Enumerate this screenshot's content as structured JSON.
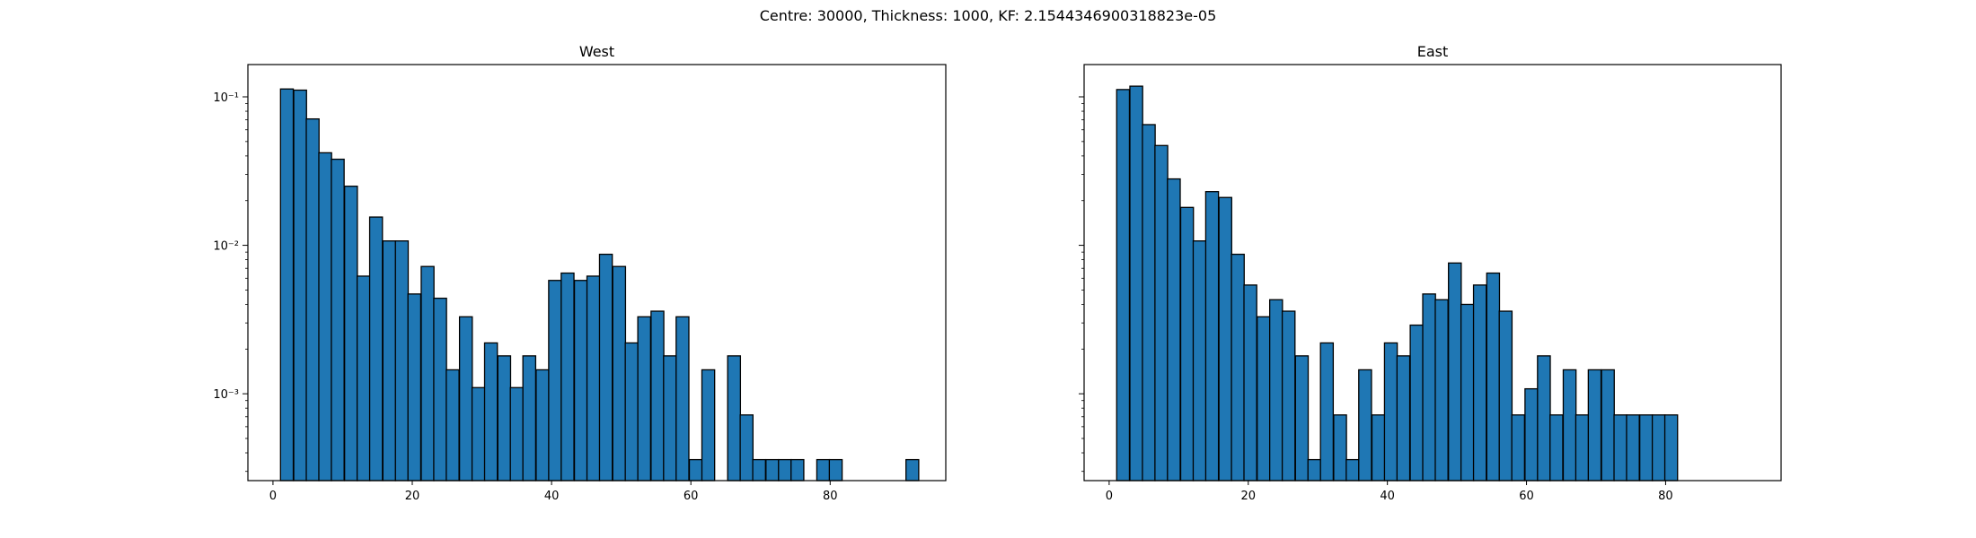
{
  "suptitle": "Centre: 30000, Thickness: 1000, KF: 2.1544346900318823e-05",
  "chart_data": [
    {
      "type": "bar",
      "title": "West",
      "xlabel": "",
      "ylabel": "",
      "yscale": "log",
      "xlim": [
        -3.6,
        96.6
      ],
      "ylim": [
        0.00026,
        0.165
      ],
      "xticks": [
        0,
        20,
        40,
        60,
        80
      ],
      "yticks": [
        0.001,
        0.01,
        0.1
      ],
      "ytick_labels": [
        "10⁻³",
        "10⁻²",
        "10⁻¹"
      ],
      "ytick_labels_visible": true,
      "bar_color": "#1f77b4",
      "edge_color": "#000000",
      "bin_width": 1.8333,
      "x": [
        2.0,
        3.9,
        5.7,
        7.5,
        9.3,
        11.2,
        13.0,
        14.8,
        16.7,
        18.5,
        20.3,
        22.2,
        24.0,
        25.8,
        27.7,
        29.5,
        31.3,
        33.2,
        35.0,
        36.8,
        38.7,
        40.5,
        42.3,
        44.2,
        46.0,
        47.8,
        49.7,
        51.5,
        53.3,
        55.2,
        57.0,
        58.8,
        60.7,
        62.5,
        64.3,
        66.2,
        68.0,
        69.8,
        71.7,
        73.5,
        75.3,
        77.2,
        79.0,
        80.8,
        82.7,
        84.5,
        86.3,
        88.2,
        90.0,
        91.8
      ],
      "values": [
        0.113,
        0.111,
        0.071,
        0.042,
        0.038,
        0.025,
        0.0062,
        0.0155,
        0.0107,
        0.0107,
        0.0047,
        0.0072,
        0.0044,
        0.00145,
        0.0033,
        0.0011,
        0.0022,
        0.0018,
        0.0011,
        0.0018,
        0.00145,
        0.0058,
        0.0065,
        0.0058,
        0.0062,
        0.0087,
        0.0072,
        0.0022,
        0.0033,
        0.0036,
        0.0018,
        0.0033,
        0.00036,
        0.00145,
        0,
        0.0018,
        0.00072,
        0.00036,
        0.00036,
        0.00036,
        0.00036,
        0,
        0.00036,
        0.00036,
        0,
        0,
        0,
        0,
        0,
        0.00036
      ]
    },
    {
      "type": "bar",
      "title": "East",
      "xlabel": "",
      "ylabel": "",
      "yscale": "log",
      "xlim": [
        -3.6,
        96.6
      ],
      "ylim": [
        0.00026,
        0.165
      ],
      "xticks": [
        0,
        20,
        40,
        60,
        80
      ],
      "yticks": [
        0.001,
        0.01,
        0.1
      ],
      "ytick_labels_visible": false,
      "bar_color": "#1f77b4",
      "edge_color": "#000000",
      "bin_width": 1.8333,
      "x": [
        2.0,
        3.9,
        5.7,
        7.5,
        9.3,
        11.2,
        13.0,
        14.8,
        16.7,
        18.5,
        20.3,
        22.2,
        24.0,
        25.8,
        27.7,
        29.5,
        31.3,
        33.2,
        35.0,
        36.8,
        38.7,
        40.5,
        42.3,
        44.2,
        46.0,
        47.8,
        49.7,
        51.5,
        53.3,
        55.2,
        57.0,
        58.8,
        60.7,
        62.5,
        64.3,
        66.2,
        68.0,
        69.8,
        71.7,
        73.5,
        75.3,
        77.2,
        79.0,
        80.8
      ],
      "values": [
        0.112,
        0.118,
        0.065,
        0.047,
        0.028,
        0.018,
        0.0107,
        0.023,
        0.021,
        0.0087,
        0.0054,
        0.0033,
        0.0043,
        0.0036,
        0.0018,
        0.00036,
        0.0022,
        0.00072,
        0.00036,
        0.00145,
        0.00072,
        0.0022,
        0.0018,
        0.0029,
        0.0047,
        0.0043,
        0.0076,
        0.004,
        0.0054,
        0.0065,
        0.0036,
        0.00072,
        0.00108,
        0.0018,
        0.00072,
        0.00145,
        0.00072,
        0.00145,
        0.00145,
        0.00072,
        0.00072,
        0.00072,
        0.00072,
        0.00072
      ]
    }
  ]
}
